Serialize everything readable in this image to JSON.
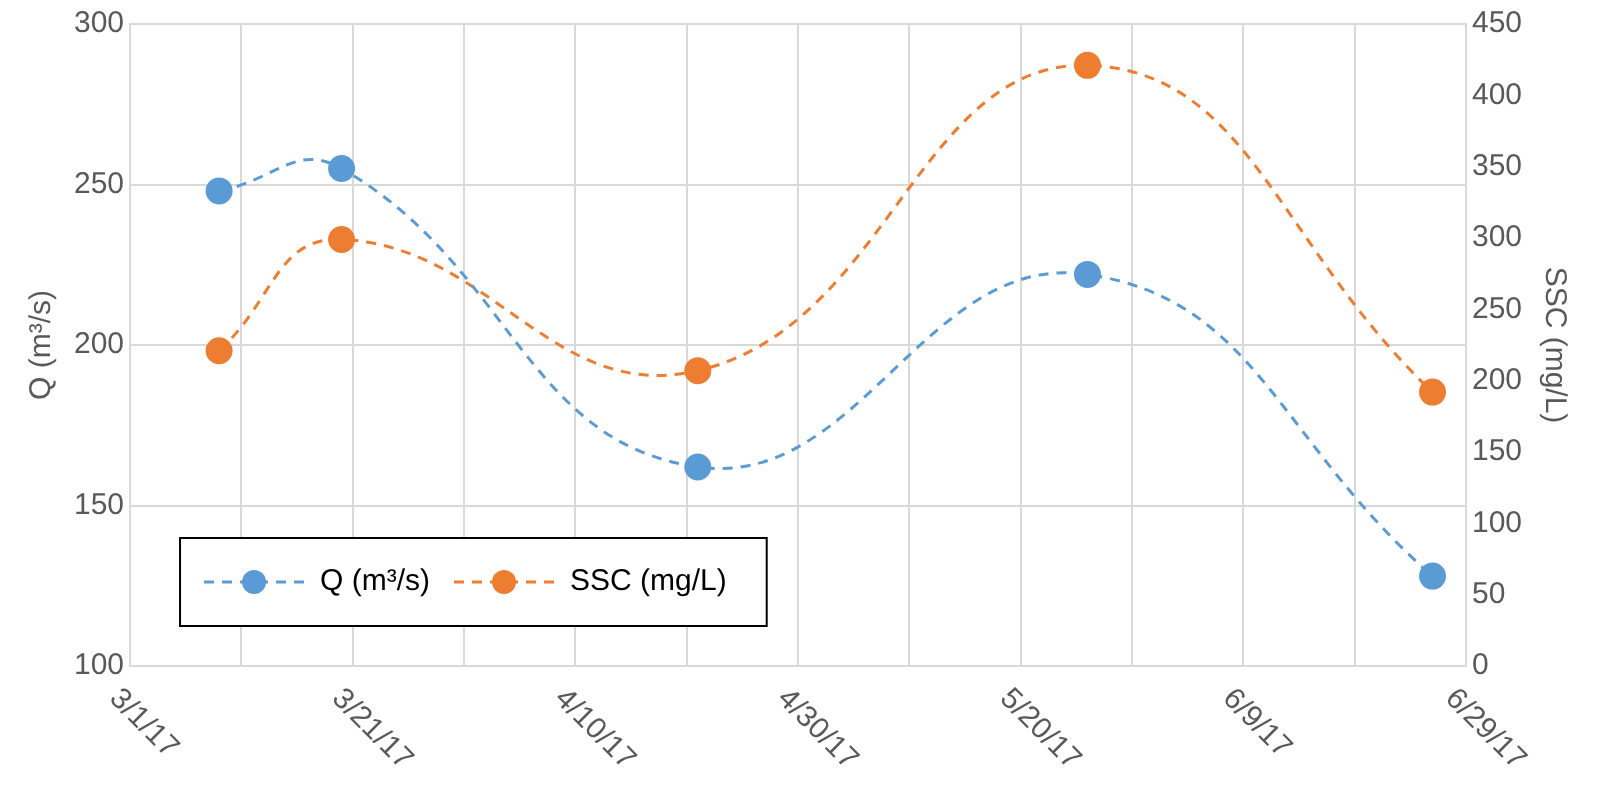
{
  "chart_data": {
    "type": "line",
    "ylabel": "Q (m³/s)",
    "y2label": "SSC (mg/L)",
    "x": [
      "--03-09",
      "--03-20",
      "--04-21",
      "--05-26",
      "--06-26"
    ],
    "series": [
      {
        "name": "Q (m³/s)",
        "color": "#5b9bd5",
        "values": [
          248,
          255,
          162,
          222,
          128
        ]
      },
      {
        "name": "SSC (mg/L)",
        "color": "#ed7d31",
        "axis": "y2",
        "values": [
          221,
          299,
          207,
          421,
          192
        ]
      }
    ],
    "xlim": [
      "--03-01",
      "--06-29"
    ],
    "xticks": [
      {
        "value": "--03-01",
        "label": "3/1/17"
      },
      {
        "value": "--03-11",
        "label": null
      },
      {
        "value": "--03-21",
        "label": "3/21/17"
      },
      {
        "value": "--03-31",
        "label": null
      },
      {
        "value": "--04-10",
        "label": "4/10/17"
      },
      {
        "value": "--04-20",
        "label": null
      },
      {
        "value": "--04-30",
        "label": "4/30/17"
      },
      {
        "value": "--05-10",
        "label": null
      },
      {
        "value": "--05-20",
        "label": "5/20/17"
      },
      {
        "value": "--05-30",
        "label": null
      },
      {
        "value": "--06-09",
        "label": "6/9/17"
      },
      {
        "value": "--06-19",
        "label": null
      },
      {
        "value": "--06-29",
        "label": "6/29/17"
      }
    ],
    "ylim": [
      100,
      300
    ],
    "yticks": [
      100,
      150,
      200,
      250,
      300
    ],
    "y2lim": [
      0,
      450
    ],
    "y2ticks": [
      0,
      50,
      100,
      150,
      200,
      250,
      300,
      350,
      400,
      450
    ],
    "grid": true,
    "legend": "bottom left",
    "marker": "circle",
    "line_style": "dashed"
  }
}
